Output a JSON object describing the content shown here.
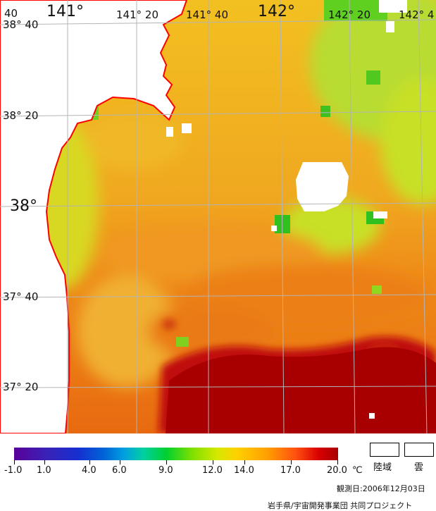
{
  "map": {
    "lon_labels": [
      "141°",
      "141° 20",
      "141° 40",
      "142°",
      "142° 20",
      "142° 4"
    ],
    "lat_labels": [
      "38° 40",
      "38° 20",
      "38°",
      "37° 40",
      "37° 20"
    ],
    "corner_label": "40"
  },
  "colorbar": {
    "ticks": [
      "-1.0",
      "1.0",
      "4.0",
      "6.0",
      "9.0",
      "12.0",
      "14.0",
      "17.0",
      "20.0"
    ],
    "unit": "℃",
    "land_label": "陸域",
    "cloud_label": "雲"
  },
  "footer": {
    "observation_date": "観測日:2006年12月03日",
    "credit": "岩手県/宇宙開発事業団 共同プロジェクト"
  },
  "colors": {
    "land": "#ffffff",
    "coastline": "#ff0000",
    "grid": "#b4b4b4",
    "warm": "#b00000",
    "cool": "#80e020"
  }
}
